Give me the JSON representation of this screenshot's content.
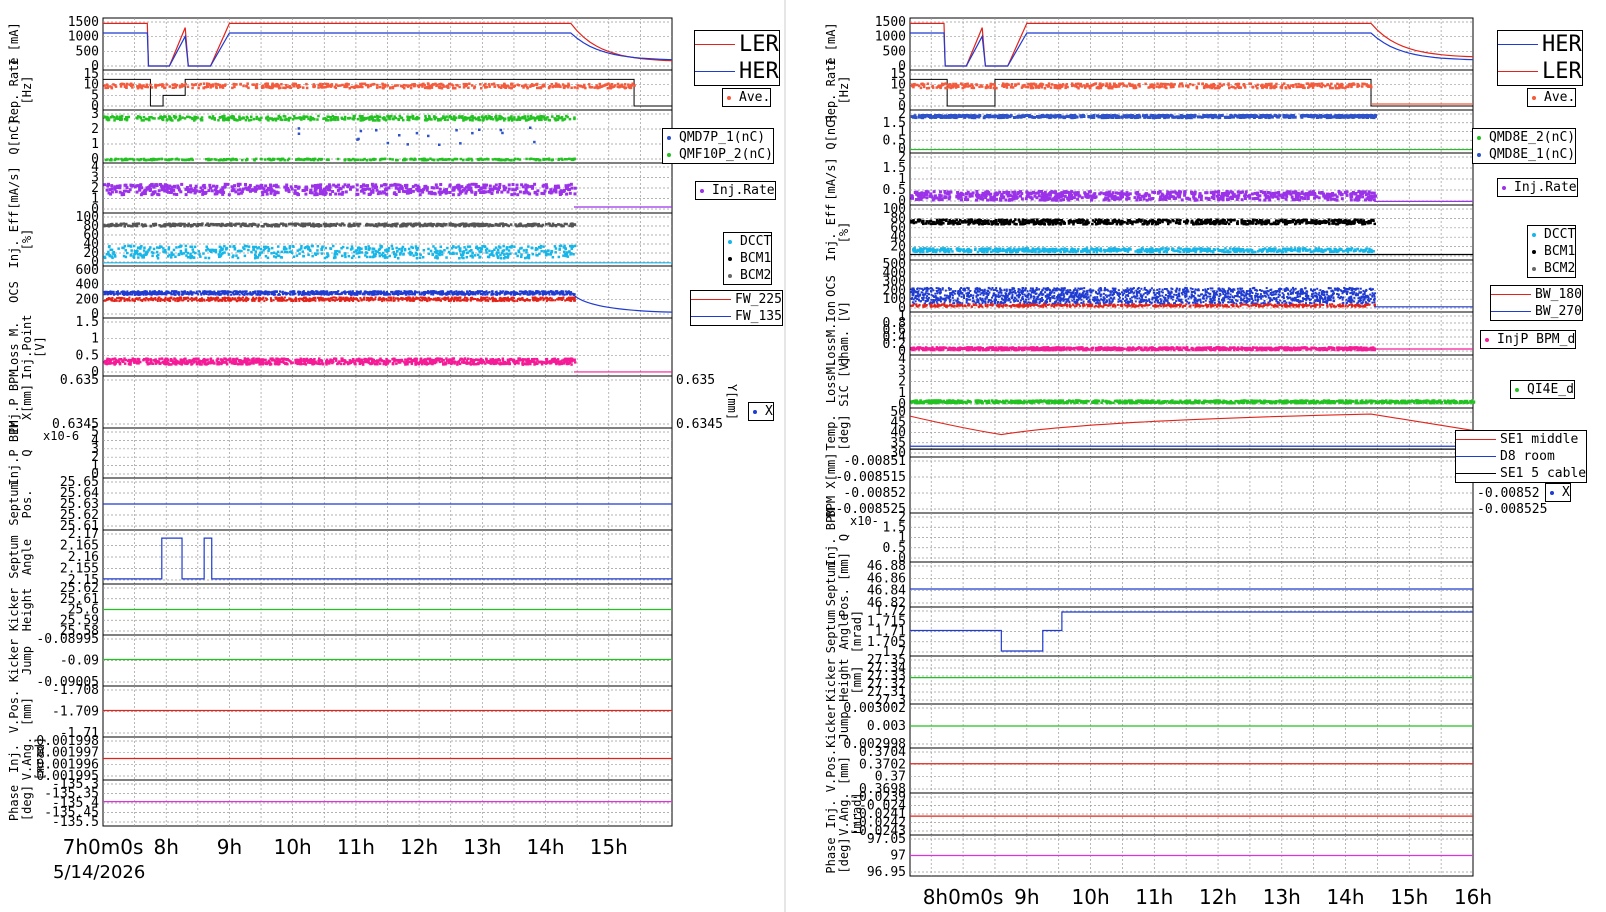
{
  "date": "5/14/2026",
  "colors": {
    "ler": "#e3231a",
    "her": "#1f3bd1",
    "ave": "#f45a3c",
    "green": "#22c221",
    "blue": "#2d52c9",
    "purple": "#9b32e9",
    "cyan": "#16b6e8",
    "black": "#000000",
    "gray": "#666666",
    "pink": "#f51b97",
    "magenta": "#dd33dd"
  },
  "chart_data": [
    {
      "type": "line",
      "name": "left",
      "xticks": [
        "7h0m0s",
        "8h",
        "9h",
        "10h",
        "11h",
        "12h",
        "13h",
        "14h",
        "15h"
      ],
      "xrange": [
        "7:00",
        "16:00"
      ],
      "legends": [
        {
          "entries": [
            "LER",
            "HER"
          ],
          "kind": "line"
        },
        {
          "entries": [
            "Ave."
          ],
          "kind": "dot"
        },
        {
          "entries": [
            "QMD7P_1(nC)",
            "QMF10P_2(nC)"
          ],
          "kind": "dot"
        },
        {
          "entries": [
            "Inj.Rate"
          ],
          "kind": "dot"
        },
        {
          "entries": [
            "DCCT",
            "BCM1",
            "BCM2"
          ],
          "kind": "dot"
        },
        {
          "entries": [
            "FW_225",
            "FW_135"
          ],
          "kind": "line"
        },
        {
          "entries": [
            "X"
          ],
          "kind": "dot"
        }
      ],
      "panels": [
        {
          "ylabel": "I [mA]",
          "yticks": [
            "1500",
            "1000",
            "500",
            "0"
          ],
          "ylim": [
            0,
            1600
          ]
        },
        {
          "ylabel": "Rep. Rate [Hz]",
          "yticks": [
            "15",
            "10",
            "5",
            "0"
          ],
          "ylim": [
            0,
            15
          ]
        },
        {
          "ylabel": "Q[nC]",
          "yticks": [
            "3",
            "2",
            "1",
            "0"
          ],
          "ylim": [
            0,
            3
          ]
        },
        {
          "ylabel": "[mA/s]",
          "yticks": [
            "4",
            "3",
            "2",
            "1",
            "0"
          ],
          "ylim": [
            0,
            4
          ]
        },
        {
          "ylabel": "Inj. Eff [%]",
          "yticks": [
            "100",
            "80",
            "60",
            "40",
            "20",
            "0"
          ],
          "ylim": [
            0,
            100
          ]
        },
        {
          "ylabel": "OCS",
          "yticks": [
            "600",
            "400",
            "200",
            "0"
          ],
          "ylim": [
            0,
            700
          ]
        },
        {
          "ylabel": "Loss M. Inj.Point [V]",
          "yticks": [
            "1.5",
            "1",
            "0.5",
            "0"
          ],
          "ylim": [
            0,
            1.5
          ]
        },
        {
          "ylabel": "Inj.P BPM X[mm]",
          "yticks": [
            "0.635",
            "0.6345"
          ],
          "yticks_right": [
            "0.635",
            "0.6345"
          ],
          "ylabel_right": "Y[mm]"
        },
        {
          "ylabel": "Inj.P BPM Q",
          "yticks": [
            "5",
            "4",
            "3",
            "2",
            "1",
            "0"
          ],
          "exponent": "x10-6"
        },
        {
          "ylabel": "Septum Pos.",
          "yticks": [
            "25.65",
            "25.64",
            "25.63",
            "25.62",
            "25.61"
          ]
        },
        {
          "ylabel": "Septum Angle",
          "yticks": [
            "2.17",
            "2.165",
            "2.16",
            "2.155",
            "2.15"
          ]
        },
        {
          "ylabel": "Kicker Height",
          "yticks": [
            "25.62",
            "25.61",
            "25.6",
            "25.59",
            "25.58"
          ]
        },
        {
          "ylabel": "Kicker Jump",
          "yticks": [
            "-0.08995",
            "-0.09",
            "-0.09005"
          ]
        },
        {
          "ylabel": "V.Pos. [mm]",
          "yticks": [
            "-1.708",
            "-1.709",
            "-1.71"
          ]
        },
        {
          "ylabel": "Inj. V.Ang. [mrad]",
          "yticks": [
            "0.001998",
            "0.001997",
            "0.001996",
            "0.001995"
          ]
        },
        {
          "ylabel": "Phase [deg]",
          "yticks": [
            "-135.3",
            "-135.35",
            "-135.4",
            "-135.45",
            "-135.5"
          ]
        }
      ],
      "series_summary": {
        "LER_current_mA": {
          "start": 1550,
          "refill_after": 1550,
          "decay_end": 150
        },
        "HER_current_mA": {
          "start": 1200,
          "refill_after": 1200,
          "decay_end": 200
        },
        "rep_rate_Hz": 10,
        "Q_nC": 2.8,
        "inj_rate_mA_s": 2.0,
        "eff_bcm_pct": 85,
        "eff_dcct_pct": 25,
        "ocs_fw225": 250,
        "ocs_fw135": 350,
        "loss_V": 0.35,
        "septum_pos": 25.625,
        "septum_angle": 2.15,
        "kicker_height": 25.6,
        "kicker_jump": -0.09,
        "vpos_mm": -1.709,
        "vang_mrad": 0.001996,
        "phase_deg": -135.4
      }
    },
    {
      "type": "line",
      "name": "right",
      "xticks": [
        "8h0m0s",
        "9h",
        "10h",
        "11h",
        "12h",
        "13h",
        "14h",
        "15h",
        "16h"
      ],
      "xrange": [
        "7:10",
        "16:00"
      ],
      "legends": [
        {
          "entries": [
            "HER",
            "LER"
          ],
          "kind": "line"
        },
        {
          "entries": [
            "Ave."
          ],
          "kind": "dot"
        },
        {
          "entries": [
            "QMD8E_2(nC)",
            "QMD8E_1(nC)"
          ],
          "kind": "dot"
        },
        {
          "entries": [
            "Inj.Rate"
          ],
          "kind": "dot"
        },
        {
          "entries": [
            "DCCT",
            "BCM1",
            "BCM2"
          ],
          "kind": "dot"
        },
        {
          "entries": [
            "BW_180",
            "BW_270"
          ],
          "kind": "line"
        },
        {
          "entries": [
            "InjP BPM_d"
          ],
          "kind": "dot"
        },
        {
          "entries": [
            "QI4E_d"
          ],
          "kind": "dot"
        },
        {
          "entries": [
            "SE1 middle",
            "D8 room",
            "SE1 5 cable"
          ],
          "kind": "line"
        },
        {
          "entries": [
            "X"
          ],
          "kind": "dot"
        }
      ],
      "panels": [
        {
          "ylabel": "I [mA]",
          "yticks": [
            "1500",
            "1000",
            "500",
            "0"
          ],
          "ylim": [
            0,
            1600
          ]
        },
        {
          "ylabel": "Rep. Rate [Hz]",
          "yticks": [
            "15",
            "10",
            "5",
            "0"
          ],
          "ylim": [
            0,
            15
          ]
        },
        {
          "ylabel": "Q[nC]",
          "yticks": [
            "2",
            "1.5",
            "1",
            "0.5",
            "0"
          ],
          "ylim": [
            0,
            2
          ]
        },
        {
          "ylabel": "[mA/s]",
          "yticks": [
            "2",
            "1.5",
            "1",
            "0.5",
            "0"
          ],
          "ylim": [
            0,
            2
          ]
        },
        {
          "ylabel": "Inj. Eff [%]",
          "yticks": [
            "100",
            "80",
            "60",
            "40",
            "20",
            "0"
          ],
          "ylim": [
            0,
            100
          ]
        },
        {
          "ylabel": "OCS",
          "yticks": [
            "500",
            "400",
            "300",
            "200",
            "100",
            "0"
          ],
          "ylim": [
            0,
            500
          ]
        },
        {
          "ylabel": "LossM.Ion cham. [V]",
          "yticks": [
            "1",
            "0.8",
            "0.6",
            "0.4",
            "0.2",
            "0"
          ],
          "ylim": [
            0,
            1
          ]
        },
        {
          "ylabel": "LossM. SiC [V]",
          "yticks": [
            "4",
            "3",
            "2",
            "1",
            "0"
          ],
          "ylim": [
            0,
            4
          ]
        },
        {
          "ylabel": "Temp. [deg]",
          "yticks": [
            "50",
            "45",
            "40",
            "35",
            "30"
          ],
          "ylim": [
            30,
            50
          ]
        },
        {
          "ylabel": "BPM X[mm]",
          "yticks": [
            "-0.00851",
            "-0.008515",
            "-0.00852",
            "-0.008525"
          ],
          "yticks_right": [
            "-0.00851",
            "-0.008515",
            "-0.00852",
            "-0.008525"
          ]
        },
        {
          "ylabel": "Inj. BPM Q",
          "yticks": [
            "2",
            "1.5",
            "1",
            "0.5",
            "0"
          ],
          "exponent": "x10-"
        },
        {
          "ylabel": "Septum Pos. [mm]",
          "yticks": [
            "46.88",
            "46.86",
            "46.84",
            "46.82"
          ]
        },
        {
          "ylabel": "Septum Angle [mrad]",
          "yticks": [
            "1.72",
            "1.715",
            "1.71",
            "1.705",
            "1.7"
          ]
        },
        {
          "ylabel": "Kicker Height [mm]",
          "yticks": [
            "27.35",
            "27.34",
            "27.33",
            "27.32",
            "27.31",
            "27.3"
          ]
        },
        {
          "ylabel": "Kicker Jump",
          "yticks": [
            "0.003002",
            "0.003",
            "0.002998"
          ]
        },
        {
          "ylabel": "V.Pos. [mm]",
          "yticks": [
            "0.3704",
            "0.3702",
            "0.37",
            "0.3698"
          ]
        },
        {
          "ylabel": "Inj. V.Ang. [mrad]",
          "yticks": [
            "-0.0239",
            "-0.024",
            "-0.0241",
            "-0.0242",
            "-0.0243"
          ]
        },
        {
          "ylabel": "Phase [deg]",
          "yticks": [
            "97.05",
            "97",
            "96.95"
          ]
        }
      ],
      "series_summary": {
        "HER_current_mA": {
          "start": 1200,
          "refill_after": 1200,
          "decay_end": 200
        },
        "LER_current_mA": {
          "start": 1550,
          "refill_after": 1550,
          "decay_end": 300
        },
        "rep_rate_Hz": 10,
        "Q_nC": 1.95,
        "inj_rate_mA_s": 0.3,
        "eff_bcm_pct": 75,
        "eff_dcct_pct": 15,
        "ocs_bw270": 150,
        "ocs_bw180": 40,
        "ion_cham_V": 0.1,
        "sic_V": 0.3,
        "temp_se1_middle": 47,
        "temp_d8_room": 33,
        "temp_se1_cable": 31,
        "septum_pos": 46.86,
        "septum_angle": 1.71,
        "kicker_height": 27.33,
        "kicker_jump": 0.003,
        "vpos_mm": 0.3701,
        "vang_mrad": -0.0241,
        "phase_deg": 97.0
      }
    }
  ]
}
